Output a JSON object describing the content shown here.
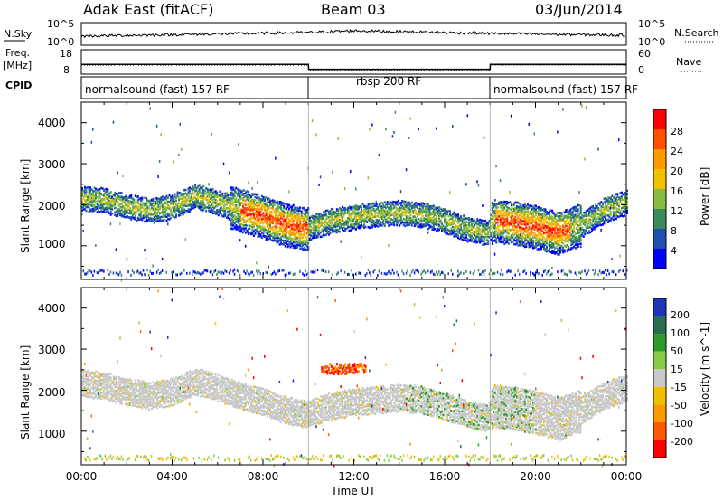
{
  "header": {
    "station": "Adak East (fitACF)",
    "beam": "Beam 03",
    "date": "03/Jun/2014"
  },
  "noise_panel": {
    "left_label": "N.Sky",
    "right_label": "N.Search",
    "left_ticks": [
      "10^5",
      "10^0"
    ],
    "right_ticks": [
      "10^5",
      "10^0"
    ]
  },
  "freq_panel": {
    "left_label_top": "Freq.",
    "left_label_unit": "[MHz]",
    "left_ticks": [
      "18",
      "8"
    ],
    "right_label": "Nave",
    "right_ticks": [
      "60",
      "0"
    ],
    "cpid_label": "CPID"
  },
  "cpid_segments": [
    {
      "label": "normalsound (fast) 157 RF"
    },
    {
      "label": "rbsp 200 RF"
    },
    {
      "label": "normalsound (fast) 157 RF"
    }
  ],
  "x_axis": {
    "label": "Time UT",
    "ticks": [
      "00:00",
      "04:00",
      "08:00",
      "12:00",
      "16:00",
      "20:00",
      "00:00"
    ]
  },
  "power_panel": {
    "ylabel": "Slant Range [km]",
    "yticks": [
      "1000",
      "2000",
      "3000",
      "4000"
    ],
    "cbar_label": "Power [dB]",
    "cbar_ticks": [
      "4",
      "8",
      "12",
      "16",
      "20",
      "24",
      "28"
    ]
  },
  "velocity_panel": {
    "ylabel": "Slant Range [km]",
    "yticks": [
      "1000",
      "2000",
      "3000",
      "4000"
    ],
    "cbar_label": "Velocity [m s^-1]",
    "cbar_ticks": [
      "200",
      "100",
      "50",
      "15",
      "-15",
      "-50",
      "-100",
      "-200"
    ]
  },
  "chart_data": {
    "type": "heatmap",
    "x_range_hours": [
      0,
      24
    ],
    "y_range_km": [
      180,
      4500
    ],
    "mode_changes_ut": [
      "10:00",
      "18:00"
    ],
    "power_colorscale": [
      "#0000ff",
      "#1f4fb0",
      "#3a8a5a",
      "#88bb44",
      "#f2c200",
      "#ff9a00",
      "#ff5000",
      "#ff0000"
    ],
    "velocity_colorscale": [
      "#1b37b8",
      "#2a6e50",
      "#2e9a2e",
      "#88cc44",
      "#c8c8c8",
      "#f0c000",
      "#ff9900",
      "#ff5a00",
      "#ff0000"
    ],
    "main_band_center_km": [
      [
        0.0,
        2200
      ],
      [
        1.0,
        2150
      ],
      [
        2.0,
        2000
      ],
      [
        3.0,
        1900
      ],
      [
        4.0,
        2000
      ],
      [
        5.0,
        2250
      ],
      [
        6.0,
        2100
      ],
      [
        7.0,
        1900
      ],
      [
        8.0,
        1750
      ],
      [
        9.0,
        1550
      ],
      [
        9.9,
        1450
      ],
      [
        10.1,
        1500
      ],
      [
        11.0,
        1650
      ],
      [
        12.0,
        1750
      ],
      [
        13.0,
        1800
      ],
      [
        14.0,
        1850
      ],
      [
        15.0,
        1800
      ],
      [
        16.0,
        1650
      ],
      [
        17.0,
        1450
      ],
      [
        17.9,
        1350
      ],
      [
        18.1,
        1650
      ],
      [
        19.0,
        1600
      ],
      [
        20.0,
        1500
      ],
      [
        21.0,
        1350
      ],
      [
        22.0,
        1550
      ],
      [
        23.0,
        1900
      ],
      [
        24.0,
        2100
      ]
    ],
    "noise_sky_levels": [
      [
        0,
        2.0
      ],
      [
        6,
        2.5
      ],
      [
        10,
        2.8
      ],
      [
        12,
        3.2
      ],
      [
        18,
        2.6
      ],
      [
        24,
        2.2
      ]
    ],
    "frequency_mhz": [
      [
        0,
        12
      ],
      [
        10,
        12
      ],
      [
        10.01,
        10
      ],
      [
        18,
        10
      ],
      [
        18.01,
        12
      ],
      [
        24,
        12
      ]
    ],
    "nave": [
      [
        0,
        22
      ],
      [
        10,
        22
      ],
      [
        10.01,
        10
      ],
      [
        18,
        10
      ],
      [
        18.01,
        22
      ],
      [
        24,
        22
      ]
    ]
  }
}
